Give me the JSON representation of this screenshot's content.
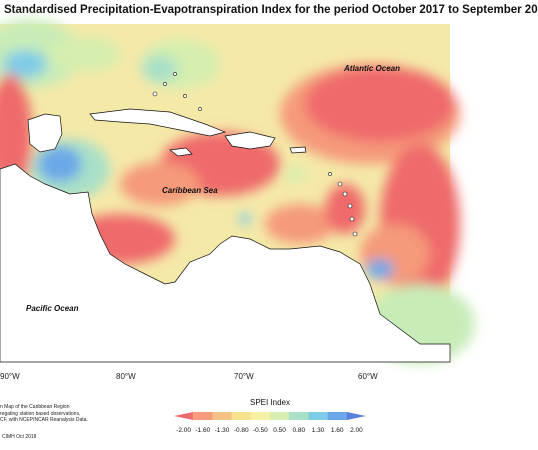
{
  "title": "Standardised Precipitation-Evapotranspiration Index for the period October 2017 to September 20",
  "map": {
    "labels": {
      "atlantic": "Atlantic Ocean",
      "caribbean": "Caribbean Sea",
      "pacific": "Pacific Ocean"
    },
    "longitudes": [
      "90°W",
      "80°W",
      "70°W",
      "60°W"
    ],
    "colors": {
      "ocean_base": "#f5e9a8",
      "land": "#ffffff",
      "coast": "#111111"
    }
  },
  "legend": {
    "title": "SPEI Index",
    "ticks": [
      "-2.00",
      "-1.60",
      "-1.30",
      "-0.80",
      "-0.50",
      "0.50",
      "0.80",
      "1.30",
      "1.60",
      "2.00"
    ],
    "colors": [
      "#ef6a6a",
      "#f59a7a",
      "#f6c184",
      "#f7e48a",
      "#f5f2a8",
      "#d6eeae",
      "#a8e0c8",
      "#7fcce6",
      "#6aa8e8",
      "#5b7fdc"
    ]
  },
  "caption": {
    "lines": [
      "n Map of the Caribbean Region",
      "regating station based observations,",
      "CF, with NCEP/NCAR Reanalysis Data."
    ],
    "credit": "CIMH Oct 2018"
  }
}
